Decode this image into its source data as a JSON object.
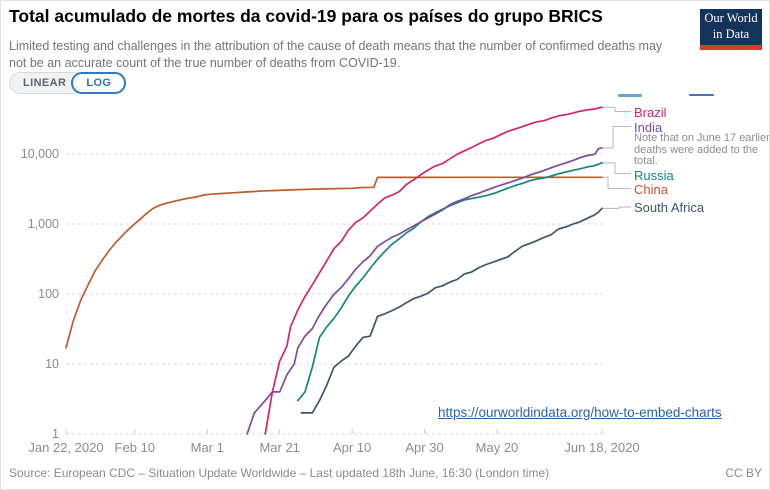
{
  "header": {
    "title": "Total acumulado de mortes da covid-19 para os países do grupo BRICS",
    "subtitle": "Limited testing and challenges in the attribution of the cause of death means that the number of confirmed deaths may not be an accurate count of the true number of deaths from COVID-19.",
    "logo": {
      "line1": "Our World",
      "line2": "in Data",
      "bg_color": "#14335b",
      "bar_color": "#d63b2f"
    }
  },
  "toolbar": {
    "linear_label": "LINEAR",
    "log_label": "LOG",
    "active": "LOG",
    "active_color": "#2d6fb5"
  },
  "chart_data": {
    "type": "line",
    "title": "Total acumulado de mortes da covid-19 para os países do grupo BRICS",
    "scale": "log",
    "grid": "horizontal-dashed",
    "legend_position": "right",
    "note": "Note that on June 17 earlier deaths were added to the total.",
    "x_axis": {
      "unit": "days since Jan 22, 2020",
      "ticks": [
        {
          "label": "Jan 22, 2020",
          "day": 0
        },
        {
          "label": "Feb 10",
          "day": 19
        },
        {
          "label": "Mar 1",
          "day": 39
        },
        {
          "label": "Mar 21",
          "day": 59
        },
        {
          "label": "Apr 10",
          "day": 79
        },
        {
          "label": "Apr 30",
          "day": 99
        },
        {
          "label": "May 20",
          "day": 119
        },
        {
          "label": "Jun 18, 2020",
          "day": 148
        }
      ]
    },
    "y_axis": {
      "scale": "log",
      "range": [
        1,
        50000
      ],
      "ticks": [
        {
          "label": "1",
          "value": 1
        },
        {
          "label": "10",
          "value": 10
        },
        {
          "label": "100",
          "value": 100
        },
        {
          "label": "1,000",
          "value": 1000
        },
        {
          "label": "10,000",
          "value": 10000
        }
      ]
    },
    "series": [
      {
        "name": "Brazil",
        "color": "#d4256c",
        "points": [
          [
            55,
            1
          ],
          [
            57,
            4
          ],
          [
            59,
            11
          ],
          [
            61,
            18
          ],
          [
            62,
            34
          ],
          [
            64,
            59
          ],
          [
            66,
            92
          ],
          [
            68,
            136
          ],
          [
            70,
            201
          ],
          [
            72,
            299
          ],
          [
            74,
            445
          ],
          [
            76,
            564
          ],
          [
            78,
            819
          ],
          [
            80,
            1057
          ],
          [
            82,
            1223
          ],
          [
            84,
            1532
          ],
          [
            86,
            1924
          ],
          [
            88,
            2354
          ],
          [
            90,
            2587
          ],
          [
            92,
            2906
          ],
          [
            94,
            3670
          ],
          [
            96,
            4286
          ],
          [
            98,
            5083
          ],
          [
            100,
            5901
          ],
          [
            102,
            6750
          ],
          [
            104,
            7321
          ],
          [
            106,
            8536
          ],
          [
            108,
            9897
          ],
          [
            110,
            11123
          ],
          [
            112,
            12400
          ],
          [
            114,
            13993
          ],
          [
            116,
            15633
          ],
          [
            118,
            16792
          ],
          [
            120,
            18859
          ],
          [
            122,
            21048
          ],
          [
            124,
            22666
          ],
          [
            126,
            24512
          ],
          [
            128,
            26754
          ],
          [
            130,
            28834
          ],
          [
            132,
            29937
          ],
          [
            134,
            32548
          ],
          [
            136,
            35026
          ],
          [
            138,
            36455
          ],
          [
            140,
            38406
          ],
          [
            142,
            41058
          ],
          [
            144,
            42720
          ],
          [
            146,
            43959
          ],
          [
            147,
            45456
          ],
          [
            148,
            46510
          ]
        ]
      },
      {
        "name": "India",
        "color": "#7d4aa2",
        "points": [
          [
            50,
            1
          ],
          [
            52,
            2
          ],
          [
            55,
            3
          ],
          [
            57,
            4
          ],
          [
            59,
            4
          ],
          [
            61,
            7
          ],
          [
            63,
            10
          ],
          [
            64,
            17
          ],
          [
            66,
            25
          ],
          [
            68,
            32
          ],
          [
            70,
            50
          ],
          [
            72,
            72
          ],
          [
            74,
            99
          ],
          [
            76,
            124
          ],
          [
            78,
            166
          ],
          [
            80,
            226
          ],
          [
            82,
            288
          ],
          [
            84,
            353
          ],
          [
            86,
            480
          ],
          [
            88,
            559
          ],
          [
            90,
            645
          ],
          [
            92,
            718
          ],
          [
            94,
            824
          ],
          [
            96,
            937
          ],
          [
            98,
            1074
          ],
          [
            100,
            1223
          ],
          [
            102,
            1389
          ],
          [
            104,
            1583
          ],
          [
            106,
            1886
          ],
          [
            108,
            2101
          ],
          [
            110,
            2293
          ],
          [
            112,
            2549
          ],
          [
            114,
            2753
          ],
          [
            116,
            3025
          ],
          [
            118,
            3303
          ],
          [
            120,
            3584
          ],
          [
            122,
            3867
          ],
          [
            124,
            4172
          ],
          [
            126,
            4531
          ],
          [
            128,
            4980
          ],
          [
            130,
            5394
          ],
          [
            132,
            5829
          ],
          [
            134,
            6363
          ],
          [
            136,
            6929
          ],
          [
            138,
            7466
          ],
          [
            140,
            8102
          ],
          [
            142,
            8884
          ],
          [
            144,
            9520
          ],
          [
            146,
            9900
          ],
          [
            147,
            11903
          ],
          [
            148,
            12237
          ]
        ]
      },
      {
        "name": "Russia",
        "color": "#13877c",
        "points": [
          [
            64,
            3
          ],
          [
            66,
            4
          ],
          [
            68,
            9
          ],
          [
            70,
            24
          ],
          [
            72,
            34
          ],
          [
            74,
            45
          ],
          [
            76,
            63
          ],
          [
            78,
            94
          ],
          [
            80,
            130
          ],
          [
            82,
            170
          ],
          [
            84,
            232
          ],
          [
            86,
            313
          ],
          [
            88,
            405
          ],
          [
            90,
            513
          ],
          [
            92,
            615
          ],
          [
            94,
            747
          ],
          [
            96,
            867
          ],
          [
            98,
            1073
          ],
          [
            100,
            1280
          ],
          [
            102,
            1451
          ],
          [
            104,
            1625
          ],
          [
            106,
            1827
          ],
          [
            108,
            2009
          ],
          [
            110,
            2212
          ],
          [
            112,
            2305
          ],
          [
            114,
            2418
          ],
          [
            116,
            2537
          ],
          [
            118,
            2722
          ],
          [
            120,
            2972
          ],
          [
            122,
            3249
          ],
          [
            124,
            3541
          ],
          [
            126,
            3807
          ],
          [
            128,
            4142
          ],
          [
            130,
            4374
          ],
          [
            132,
            4555
          ],
          [
            134,
            4855
          ],
          [
            136,
            5208
          ],
          [
            138,
            5528
          ],
          [
            140,
            5859
          ],
          [
            142,
            6142
          ],
          [
            144,
            6532
          ],
          [
            146,
            6829
          ],
          [
            148,
            7478
          ]
        ]
      },
      {
        "name": "China",
        "color": "#bf5a2e",
        "points": [
          [
            0,
            17
          ],
          [
            2,
            41
          ],
          [
            4,
            80
          ],
          [
            6,
            132
          ],
          [
            8,
            213
          ],
          [
            10,
            304
          ],
          [
            12,
            425
          ],
          [
            14,
            563
          ],
          [
            16,
            722
          ],
          [
            18,
            908
          ],
          [
            20,
            1113
          ],
          [
            22,
            1380
          ],
          [
            24,
            1665
          ],
          [
            26,
            1868
          ],
          [
            28,
            2004
          ],
          [
            30,
            2118
          ],
          [
            32,
            2236
          ],
          [
            34,
            2345
          ],
          [
            36,
            2442
          ],
          [
            38,
            2592
          ],
          [
            40,
            2663
          ],
          [
            43,
            2730
          ],
          [
            46,
            2788
          ],
          [
            49,
            2858
          ],
          [
            52,
            2912
          ],
          [
            55,
            2977
          ],
          [
            58,
            3012
          ],
          [
            61,
            3056
          ],
          [
            64,
            3097
          ],
          [
            67,
            3127
          ],
          [
            70,
            3158
          ],
          [
            73,
            3180
          ],
          [
            76,
            3218
          ],
          [
            79,
            3237
          ],
          [
            82,
            3317
          ],
          [
            85,
            3342
          ],
          [
            86,
            4636
          ],
          [
            92,
            4637
          ],
          [
            100,
            4638
          ],
          [
            110,
            4640
          ],
          [
            120,
            4641
          ],
          [
            130,
            4642
          ],
          [
            140,
            4644
          ],
          [
            148,
            4645
          ]
        ]
      },
      {
        "name": "South Africa",
        "color": "#42536b",
        "points": [
          [
            65,
            2
          ],
          [
            68,
            2
          ],
          [
            70,
            3
          ],
          [
            72,
            5
          ],
          [
            74,
            9
          ],
          [
            76,
            11
          ],
          [
            78,
            13
          ],
          [
            80,
            18
          ],
          [
            82,
            24
          ],
          [
            84,
            25
          ],
          [
            86,
            48
          ],
          [
            88,
            52
          ],
          [
            90,
            58
          ],
          [
            92,
            65
          ],
          [
            94,
            75
          ],
          [
            96,
            86
          ],
          [
            98,
            93
          ],
          [
            100,
            103
          ],
          [
            102,
            123
          ],
          [
            104,
            131
          ],
          [
            106,
            148
          ],
          [
            108,
            161
          ],
          [
            110,
            194
          ],
          [
            112,
            206
          ],
          [
            114,
            238
          ],
          [
            116,
            264
          ],
          [
            118,
            286
          ],
          [
            120,
            312
          ],
          [
            122,
            339
          ],
          [
            124,
            407
          ],
          [
            126,
            481
          ],
          [
            128,
            524
          ],
          [
            130,
            577
          ],
          [
            132,
            643
          ],
          [
            134,
            705
          ],
          [
            136,
            848
          ],
          [
            138,
            908
          ],
          [
            140,
            998
          ],
          [
            142,
            1080
          ],
          [
            144,
            1210
          ],
          [
            146,
            1354
          ],
          [
            147,
            1480
          ],
          [
            148,
            1674
          ]
        ]
      }
    ]
  },
  "embed_link": {
    "text": "https://ourworldindata.org/how-to-embed-charts",
    "color": "#2a63a9"
  },
  "footer": {
    "source": "Source: European CDC – Situation Update Worldwide – Last updated 18th June, 16:30 (London time)",
    "license": "CC BY"
  }
}
